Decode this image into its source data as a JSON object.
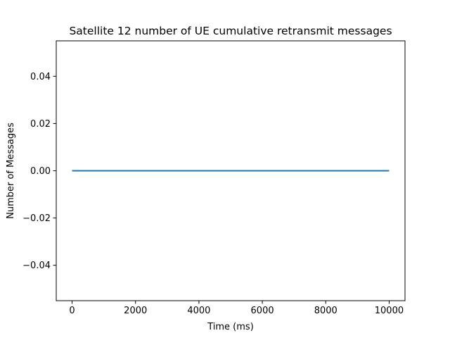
{
  "chart_data": {
    "type": "line",
    "title": "Satellite 12 number of UE cumulative retransmit messages",
    "xlabel": "Time (ms)",
    "ylabel": "Number of Messages",
    "xlim": [
      -500,
      10500
    ],
    "ylim": [
      -0.055,
      0.055
    ],
    "xticks": [
      0,
      2000,
      4000,
      6000,
      8000,
      10000
    ],
    "yticks": [
      -0.04,
      -0.02,
      0.0,
      0.02,
      0.04
    ],
    "ytick_labels": [
      "−0.04",
      "−0.02",
      "0.00",
      "0.02",
      "0.04"
    ],
    "grid": false,
    "series": [
      {
        "color": "#1f77b4",
        "x": [
          0,
          10000
        ],
        "y": [
          0,
          0
        ]
      }
    ]
  }
}
